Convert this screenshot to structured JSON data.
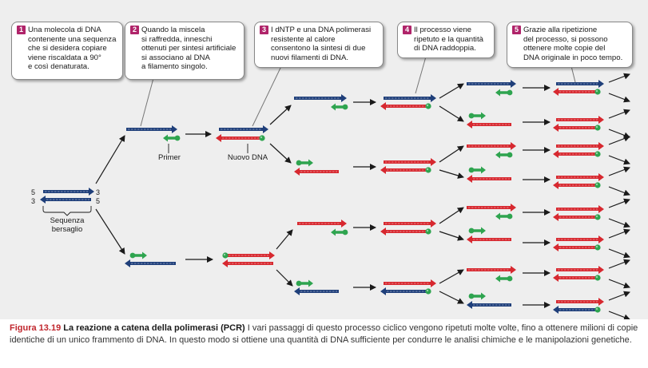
{
  "steps": [
    {
      "number": "1",
      "text": "Una molecola di DNA\ncontenente una sequenza\nche si desidera copiare\nviene riscaldata a 90°\ne così denaturata."
    },
    {
      "number": "2",
      "text": "Quando la miscela\nsi raffredda, inneschi\nottenuti per sintesi artificiale\nsi associano al DNA\na filamento singolo."
    },
    {
      "number": "3",
      "text": "I dNTP e una DNA polimerasi\nresistente al calore\nconsentono la sintesi di due\nnuovi filamenti di DNA."
    },
    {
      "number": "4",
      "text": "Il processo viene\nripetuto e la quantità\ndi DNA raddoppia."
    },
    {
      "number": "5",
      "text": "Grazie alla ripetizione\ndel processo, si possono\nottenere molte copie del\nDNA originale in poco tempo."
    }
  ],
  "labels": {
    "primer": "Primer",
    "new_dna": "Nuovo DNA",
    "target_line1": "Sequenza",
    "target_line2": "bersaglio",
    "end5_left": "5",
    "end3_left": "3",
    "end3_right": "3",
    "end5_right": "5"
  },
  "caption": {
    "label": "Figura 13.19",
    "title": "La reazione a catena della polimerasi (PCR)",
    "text": "I vari passaggi di questo processo ciclico vengono ripetuti molte volte, fino a ottenere milioni di copie identiche di un unico frammento di DNA. In questo modo si ottiene una quantità di DNA sufficiente per condurre le analisi chimiche e le manipolazioni genetiche."
  },
  "colors": {
    "template_strand": "#1f3f7a",
    "new_strand": "#d7282f",
    "primer": "#2ea44f",
    "step_badge": "#b0246a",
    "figure_label": "#c0262d"
  }
}
